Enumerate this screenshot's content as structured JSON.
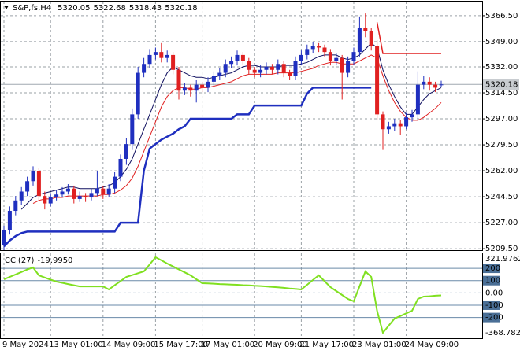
{
  "chart_data": {
    "type": "candlestick",
    "symbol": "S&P,fs,H4",
    "categories": [
      "9 May 2024",
      null,
      null,
      null,
      null,
      null,
      null,
      null,
      "13 May 01:00",
      null,
      null,
      null,
      null,
      null,
      null,
      null,
      null,
      "14 May 09:00",
      null,
      null,
      null,
      null,
      null,
      null,
      null,
      null,
      "15 May 17:00",
      null,
      null,
      null,
      null,
      null,
      null,
      null,
      "17 May 01:00",
      null,
      null,
      null,
      null,
      null,
      null,
      null,
      null,
      "20 May 09:00",
      null,
      null,
      null,
      null,
      null,
      null,
      null,
      "21 May 17:00",
      null,
      null,
      null,
      null,
      null,
      null,
      null,
      null,
      "23 May 01:00",
      null,
      null,
      null,
      null,
      null,
      null,
      null,
      null,
      "24 May 09:00",
      null,
      null,
      null,
      null,
      null,
      null
    ],
    "open": [
      5212,
      5222,
      5235,
      5242,
      5248,
      5255,
      5262,
      5245,
      5240,
      5244,
      5246,
      5248,
      5250,
      5243,
      5245,
      5244,
      5247,
      5250,
      5246,
      5250,
      5258,
      5270,
      5280,
      5300,
      5328,
      5334,
      5340,
      5342,
      5338,
      5340,
      5330,
      5316,
      5318,
      5316,
      5320,
      5318,
      5322,
      5326,
      5328,
      5334,
      5336,
      5340,
      5336,
      5330,
      5328,
      5330,
      5332,
      5330,
      5334,
      5328,
      5326,
      5336,
      5340,
      5344,
      5346,
      5345,
      5342,
      5336,
      5338,
      5328,
      5336,
      5342,
      5358,
      5356,
      5346,
      5300,
      5290,
      5292,
      5294,
      5292,
      5298,
      5300,
      5320,
      5322,
      5320,
      5320.05
    ],
    "high": [
      5225,
      5238,
      5245,
      5251,
      5258,
      5265,
      5264,
      5248,
      5247,
      5249,
      5251,
      5253,
      5252,
      5248,
      5247,
      5250,
      5262,
      5252,
      5253,
      5261,
      5273,
      5284,
      5304,
      5332,
      5338,
      5344,
      5345,
      5348,
      5343,
      5342,
      5332,
      5321,
      5320,
      5323,
      5322,
      5325,
      5329,
      5331,
      5337,
      5339,
      5343,
      5342,
      5338,
      5332,
      5333,
      5335,
      5334,
      5337,
      5336,
      5330,
      5339,
      5343,
      5347,
      5349,
      5348,
      5347,
      5344,
      5341,
      5340,
      5339,
      5345,
      5366,
      5368,
      5358,
      5350,
      5302,
      5295,
      5297,
      5296,
      5301,
      5303,
      5329,
      5326,
      5325,
      5322,
      5322.68
    ],
    "low": [
      5208,
      5219,
      5232,
      5239,
      5245,
      5252,
      5242,
      5236,
      5238,
      5242,
      5244,
      5246,
      5240,
      5241,
      5241,
      5242,
      5245,
      5243,
      5244,
      5247,
      5255,
      5266,
      5276,
      5297,
      5325,
      5331,
      5337,
      5335,
      5335,
      5327,
      5310,
      5313,
      5312,
      5308,
      5315,
      5315,
      5319,
      5323,
      5325,
      5331,
      5333,
      5333,
      5327,
      5325,
      5325,
      5327,
      5327,
      5327,
      5325,
      5323,
      5323,
      5333,
      5337,
      5341,
      5342,
      5339,
      5333,
      5333,
      5310,
      5325,
      5333,
      5339,
      5352,
      5343,
      5296,
      5276,
      5287,
      5289,
      5286,
      5290,
      5295,
      5297,
      5317,
      5316,
      5315,
      5318.43
    ],
    "close": [
      5222,
      5235,
      5242,
      5248,
      5255,
      5262,
      5245,
      5240,
      5244,
      5246,
      5248,
      5250,
      5243,
      5245,
      5244,
      5247,
      5250,
      5246,
      5250,
      5258,
      5270,
      5280,
      5300,
      5328,
      5334,
      5340,
      5342,
      5338,
      5340,
      5330,
      5316,
      5318,
      5316,
      5320,
      5318,
      5322,
      5326,
      5328,
      5334,
      5336,
      5340,
      5336,
      5330,
      5328,
      5330,
      5332,
      5330,
      5334,
      5328,
      5326,
      5336,
      5340,
      5344,
      5346,
      5345,
      5342,
      5336,
      5338,
      5328,
      5336,
      5342,
      5358,
      5356,
      5346,
      5300,
      5290,
      5292,
      5294,
      5292,
      5298,
      5300,
      5320,
      5322,
      5320,
      5318,
      5320.18
    ],
    "up_color": "#1f2fbf",
    "down_color": "#e02020",
    "price_line_color": "#a0a8b0",
    "overlays": [
      {
        "color": "#1f2fbf",
        "values": [
          5211,
          5215,
          5218,
          5220,
          5221,
          5221,
          5221,
          5221,
          5221,
          5221,
          5221,
          5221,
          5221,
          5221,
          5221,
          5221,
          5221,
          5221,
          5221,
          5221,
          5227,
          5227,
          5227,
          5227,
          5262,
          5277,
          5280,
          5283,
          5285,
          5287,
          5290,
          5292,
          5297,
          5297,
          5297,
          5297,
          5297,
          5297,
          5297,
          5297,
          5300,
          5300,
          5300,
          5306,
          5306,
          5306,
          5306,
          5306,
          5306,
          5306,
          5306,
          5306,
          5314,
          5318,
          5318,
          5318,
          5318,
          5318,
          5318,
          5318,
          5318,
          5318,
          5318,
          5318,
          null,
          null,
          null,
          null,
          null,
          null,
          null,
          null,
          null,
          null,
          null,
          null
        ]
      },
      {
        "color": "#101060",
        "values": [
          null,
          null,
          null,
          5236,
          5240,
          5244,
          5246,
          5247,
          5248,
          5249,
          5250,
          5251,
          5251,
          5250,
          5250,
          5250,
          5250,
          5251,
          5252,
          5254,
          5258,
          5263,
          5270,
          5280,
          5290,
          5300,
          5310,
          5320,
          5328,
          5332,
          5330,
          5328,
          5326,
          5325,
          5325,
          5324,
          5325,
          5326,
          5327,
          5328,
          5330,
          5332,
          5333,
          5333,
          5332,
          5332,
          5332,
          5332,
          5333,
          5333,
          5333,
          5334,
          5335,
          5337,
          5339,
          5340,
          5340,
          5340,
          5338,
          5337,
          5338,
          5340,
          5344,
          5348,
          5345,
          5330,
          5320,
          5312,
          5305,
          5300,
          5300,
          5305,
          5310,
          5314,
          5316,
          5318
        ]
      },
      {
        "color": "#e02020",
        "values": [
          null,
          null,
          null,
          null,
          null,
          5240,
          5242,
          5243,
          5243,
          5244,
          5244,
          5245,
          5245,
          5245,
          5245,
          5245,
          5245,
          5246,
          5246,
          5247,
          5249,
          5252,
          5257,
          5265,
          5275,
          5285,
          5295,
          5305,
          5312,
          5316,
          5318,
          5318,
          5317,
          5317,
          5318,
          5318,
          5319,
          5320,
          5321,
          5322,
          5324,
          5326,
          5327,
          5327,
          5327,
          5327,
          5327,
          5328,
          5328,
          5328,
          5328,
          5329,
          5330,
          5331,
          5333,
          5334,
          5335,
          5335,
          5334,
          5334,
          5334,
          5336,
          5338,
          5340,
          5338,
          5326,
          5316,
          5308,
          5302,
          5298,
          5296,
          5296,
          5298,
          5301,
          5304,
          5308
        ]
      },
      {
        "color": "#e02020",
        "values": [
          null,
          null,
          null,
          null,
          null,
          null,
          null,
          null,
          null,
          null,
          null,
          null,
          null,
          null,
          null,
          null,
          null,
          null,
          null,
          null,
          null,
          null,
          null,
          null,
          null,
          null,
          null,
          null,
          null,
          null,
          null,
          null,
          null,
          null,
          null,
          null,
          null,
          null,
          null,
          null,
          null,
          null,
          null,
          null,
          null,
          null,
          null,
          null,
          null,
          null,
          null,
          null,
          null,
          null,
          null,
          null,
          null,
          null,
          null,
          null,
          null,
          null,
          null,
          null,
          5362,
          5341,
          5341,
          5341,
          5341,
          5341,
          5341,
          5341,
          5341,
          5341,
          5341,
          5341
        ]
      }
    ],
    "ylim": [
      5208.5,
      5376
    ],
    "yticks": [
      {
        "value": 5366.5,
        "label": "5366.50"
      },
      {
        "value": 5349,
        "label": "5349.00"
      },
      {
        "value": 5332,
        "label": "5332.00"
      },
      {
        "value": 5314.5,
        "label": "5314.50"
      },
      {
        "value": 5297,
        "label": "5297.00"
      },
      {
        "value": 5279.5,
        "label": "5279.50"
      },
      {
        "value": 5262,
        "label": "5262.00"
      },
      {
        "value": 5244.5,
        "label": "5244.50"
      },
      {
        "value": 5227,
        "label": "5227.00"
      },
      {
        "value": 5209.5,
        "label": "5209.50"
      }
    ],
    "grid": true,
    "cci": {
      "name": "CCI(27)",
      "color": "#80e020",
      "last_value_label": "-19.9950",
      "values": [
        110,
        130,
        150,
        170,
        190,
        207,
        143,
        125,
        108,
        92,
        82,
        72,
        62,
        53,
        53,
        53,
        53,
        53,
        28,
        62,
        96,
        130,
        145,
        160,
        175,
        232,
        290,
        265,
        239,
        215,
        191,
        167,
        143,
        111,
        79,
        77,
        75,
        72,
        70,
        68,
        66,
        63,
        61,
        58,
        56,
        53,
        49,
        45,
        41,
        36,
        32,
        28,
        66,
        105,
        143,
        95,
        47,
        15,
        -17,
        -49,
        -68,
        54,
        175,
        130,
        -145,
        -324,
        -266,
        -209,
        -188,
        -166,
        -145,
        -49,
        -30,
        -27,
        -23,
        -19.995
      ],
      "ylim": [
        -368.7825,
        321.9762
      ],
      "yticks": [
        321.9762,
        200,
        100,
        {
          "value": 0,
          "label": "0.00"
        },
        -100,
        -200,
        -368.7825
      ]
    }
  }
}
